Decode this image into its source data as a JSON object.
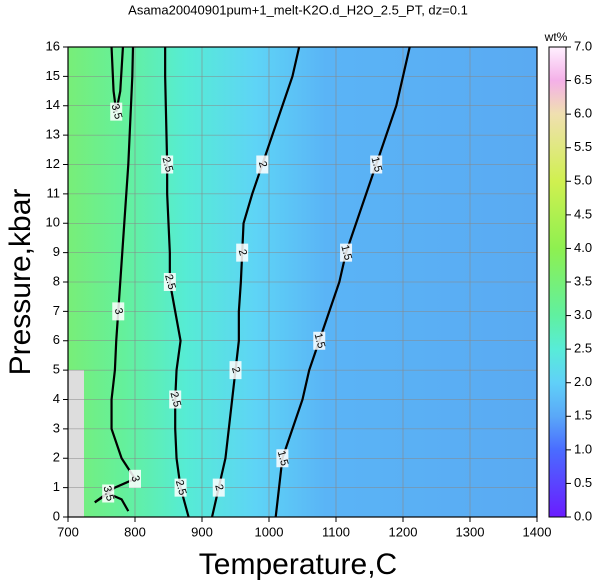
{
  "chart_data": {
    "type": "contour",
    "title": "Asama20040901pum+1_melt-K2O.d_H2O_2.5_PT, dz=0.1",
    "x_label": "Temperature,C",
    "y_label": "Pressure,kbar",
    "xlim": [
      700,
      1400
    ],
    "ylim": [
      0,
      16
    ],
    "xticks": [
      700,
      800,
      900,
      1000,
      1100,
      1200,
      1300,
      1400
    ],
    "yticks": [
      0,
      1,
      2,
      3,
      4,
      5,
      6,
      7,
      8,
      9,
      10,
      11,
      12,
      13,
      14,
      15,
      16
    ],
    "grid": true,
    "contours": [
      {
        "level": 1.5,
        "x": [
          1010,
          1015,
          1020,
          1035,
          1050,
          1060,
          1075,
          1090,
          1105,
          1115,
          1130,
          1145,
          1160,
          1175,
          1190,
          1200,
          1210
        ],
        "y": [
          0,
          1,
          2,
          3,
          4,
          5,
          6,
          7,
          8,
          9,
          10,
          11,
          12,
          13,
          14,
          15,
          16
        ]
      },
      {
        "level": 2,
        "x": [
          915,
          925,
          935,
          940,
          945,
          950,
          955,
          955,
          958,
          960,
          962,
          975,
          990,
          1005,
          1020,
          1035,
          1045
        ],
        "y": [
          0,
          1,
          2,
          3,
          4,
          5,
          6,
          7,
          8,
          9,
          10,
          11,
          12,
          13,
          14,
          15,
          16
        ]
      },
      {
        "level": 2.5,
        "x": [
          880,
          868,
          862,
          860,
          860,
          862,
          868,
          860,
          852,
          852,
          850,
          848,
          848,
          847,
          846,
          845,
          845
        ],
        "y": [
          0,
          1,
          2,
          3,
          4,
          5,
          6,
          7,
          8,
          9,
          10,
          11,
          12,
          13,
          14,
          15,
          16
        ]
      },
      {
        "level": 3,
        "x": [
          740,
          770,
          800,
          780,
          765,
          765,
          770,
          772,
          775,
          778,
          781,
          784,
          787,
          790,
          792,
          794,
          796,
          797
        ],
        "y": [
          0.5,
          1,
          1.3,
          2,
          3,
          4,
          5,
          6,
          7,
          8,
          9,
          10,
          11,
          12,
          13,
          14,
          15,
          16
        ]
      },
      {
        "level": 3.5,
        "x": [
          765,
          768,
          772,
          778,
          782
        ],
        "y": [
          16,
          14.5,
          13.8,
          14.5,
          16
        ]
      },
      {
        "level": 3.5,
        "x": [
          740,
          760,
          780,
          790
        ],
        "y": [
          0.5,
          0.8,
          0.6,
          0.2
        ]
      }
    ],
    "colorbar": {
      "title": "wt%",
      "lim": [
        0,
        7
      ],
      "ticks": [
        {
          "value": 0,
          "label": "0.0"
        },
        {
          "value": 0.5,
          "label": "0.5"
        },
        {
          "value": 1,
          "label": "1.0"
        },
        {
          "value": 1.5,
          "label": "1.5"
        },
        {
          "value": 2,
          "label": "2.0"
        },
        {
          "value": 2.5,
          "label": "2.5"
        },
        {
          "value": 3,
          "label": "3.0"
        },
        {
          "value": 3.5,
          "label": "3.5"
        },
        {
          "value": 4,
          "label": "4.0"
        },
        {
          "value": 4.5,
          "label": "4.5"
        },
        {
          "value": 5,
          "label": "5.0"
        },
        {
          "value": 5.5,
          "label": "5.5"
        },
        {
          "value": 6,
          "label": "6.0"
        },
        {
          "value": 6.5,
          "label": "6.5"
        },
        {
          "value": 7,
          "label": "7.0"
        }
      ],
      "colormap": [
        {
          "value": 0,
          "color": "#6a1cff"
        },
        {
          "value": 1,
          "color": "#4a6cff"
        },
        {
          "value": 1.5,
          "color": "#5aa8f8"
        },
        {
          "value": 2,
          "color": "#60d0f8"
        },
        {
          "value": 2.5,
          "color": "#58ecd8"
        },
        {
          "value": 3,
          "color": "#60f0a0"
        },
        {
          "value": 4,
          "color": "#8ef050"
        },
        {
          "value": 5,
          "color": "#d0f050"
        },
        {
          "value": 6,
          "color": "#f0e0b0"
        },
        {
          "value": 6.5,
          "color": "#f4b0e8"
        },
        {
          "value": 7,
          "color": "#fff0ff"
        }
      ]
    }
  }
}
